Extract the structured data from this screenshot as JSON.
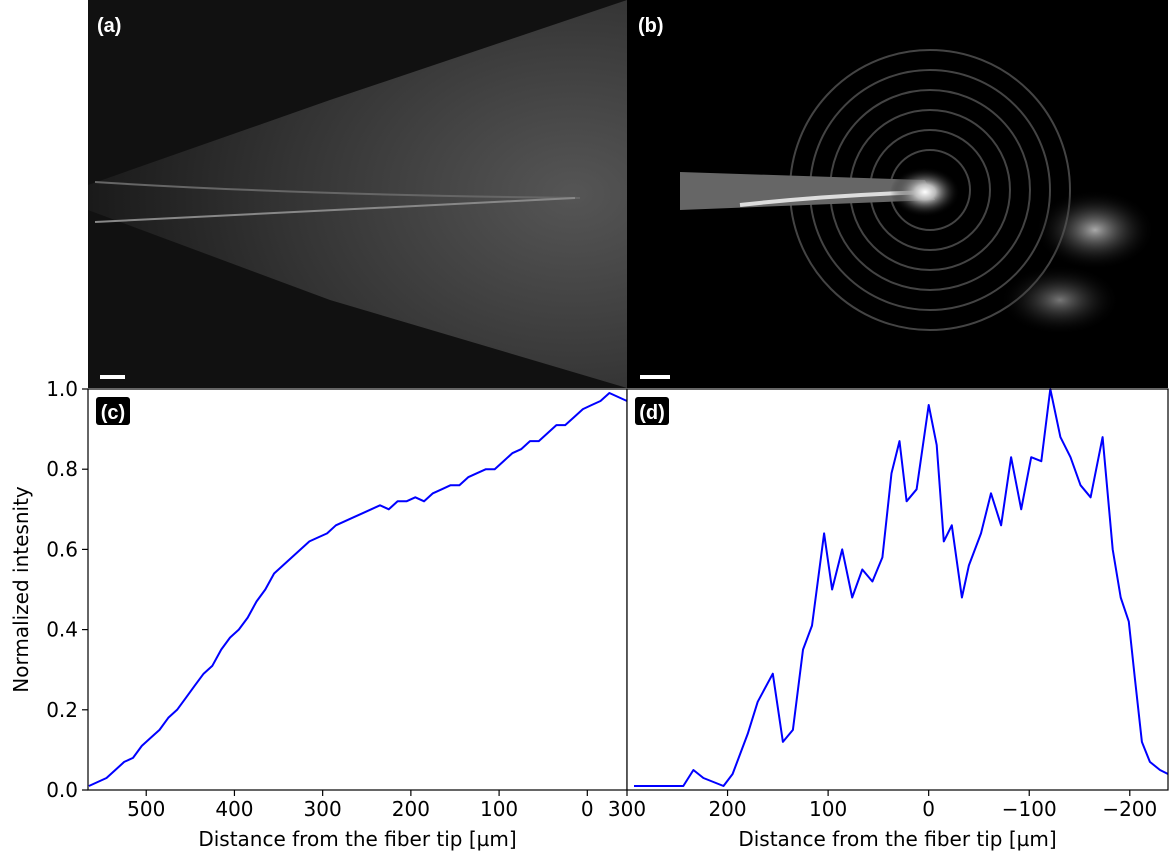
{
  "images": [
    {
      "label": "(a)"
    },
    {
      "label": "(b)"
    }
  ],
  "chart_data": [
    {
      "type": "line",
      "panel_label": "(c)",
      "xlabel": "Distance from the fiber tip [µm]",
      "ylabel": "Normalized intesnity",
      "x": [
        565,
        555,
        545,
        535,
        525,
        515,
        505,
        495,
        485,
        475,
        465,
        455,
        445,
        435,
        425,
        415,
        405,
        395,
        385,
        375,
        365,
        355,
        345,
        335,
        325,
        315,
        305,
        295,
        285,
        275,
        265,
        255,
        245,
        235,
        225,
        215,
        205,
        195,
        185,
        175,
        165,
        155,
        145,
        135,
        125,
        115,
        105,
        95,
        85,
        75,
        65,
        55,
        45,
        35,
        25,
        15,
        5,
        -5,
        -15,
        -25,
        -35,
        -45
      ],
      "series": [
        {
          "color": "#0000ff",
          "values": [
            0.01,
            0.02,
            0.03,
            0.05,
            0.07,
            0.08,
            0.11,
            0.13,
            0.15,
            0.18,
            0.2,
            0.23,
            0.26,
            0.29,
            0.31,
            0.35,
            0.38,
            0.4,
            0.43,
            0.47,
            0.5,
            0.54,
            0.56,
            0.58,
            0.6,
            0.62,
            0.63,
            0.64,
            0.66,
            0.67,
            0.68,
            0.69,
            0.7,
            0.71,
            0.7,
            0.72,
            0.72,
            0.73,
            0.72,
            0.74,
            0.75,
            0.76,
            0.76,
            0.78,
            0.79,
            0.8,
            0.8,
            0.82,
            0.84,
            0.85,
            0.87,
            0.87,
            0.89,
            0.91,
            0.91,
            0.93,
            0.95,
            0.96,
            0.97,
            0.99,
            0.98,
            0.97
          ]
        }
      ],
      "xlim": [
        566,
        -45
      ],
      "ylim": [
        0,
        1
      ],
      "xticks": [
        500,
        400,
        300,
        200,
        100,
        0
      ],
      "yticks": [
        {
          "value": 0,
          "label": "0.0"
        },
        {
          "value": 0.2,
          "label": "0.2"
        },
        {
          "value": 0.4,
          "label": "0.4"
        },
        {
          "value": 0.6,
          "label": "0.6"
        },
        {
          "value": 0.8,
          "label": "0.8"
        },
        {
          "value": 1,
          "label": "1.0"
        }
      ]
    },
    {
      "type": "line",
      "panel_label": "(d)",
      "xlabel": "Distance from the fiber tip [µm]",
      "x": [
        293,
        244,
        234,
        224,
        204,
        195,
        180,
        170,
        155,
        145,
        135,
        125,
        116,
        104,
        96,
        86,
        76,
        66,
        56,
        46,
        37,
        29,
        22,
        12,
        0,
        -8,
        -15,
        -23,
        -33,
        -40,
        -52,
        -62,
        -72,
        -82,
        -92,
        -102,
        -112,
        -121,
        -131,
        -141,
        -151,
        -161,
        -173,
        -183,
        -191,
        -199,
        -205,
        -212,
        -220,
        -230,
        -238
      ],
      "series": [
        {
          "color": "#0000ff",
          "values": [
            0.01,
            0.01,
            0.05,
            0.03,
            0.01,
            0.04,
            0.14,
            0.22,
            0.29,
            0.12,
            0.15,
            0.35,
            0.41,
            0.64,
            0.5,
            0.6,
            0.48,
            0.55,
            0.52,
            0.58,
            0.79,
            0.87,
            0.72,
            0.75,
            0.96,
            0.86,
            0.62,
            0.66,
            0.48,
            0.56,
            0.64,
            0.74,
            0.66,
            0.83,
            0.7,
            0.83,
            0.82,
            1.0,
            0.88,
            0.83,
            0.76,
            0.73,
            0.88,
            0.6,
            0.48,
            0.42,
            0.28,
            0.12,
            0.07,
            0.05,
            0.04
          ]
        }
      ],
      "xlim": [
        300,
        -238
      ],
      "ylim": [
        0,
        1
      ],
      "xticks": [
        300,
        200,
        100,
        0,
        {
          "value": -100,
          "label": "−100"
        },
        {
          "value": -200,
          "label": "−200"
        }
      ]
    }
  ]
}
